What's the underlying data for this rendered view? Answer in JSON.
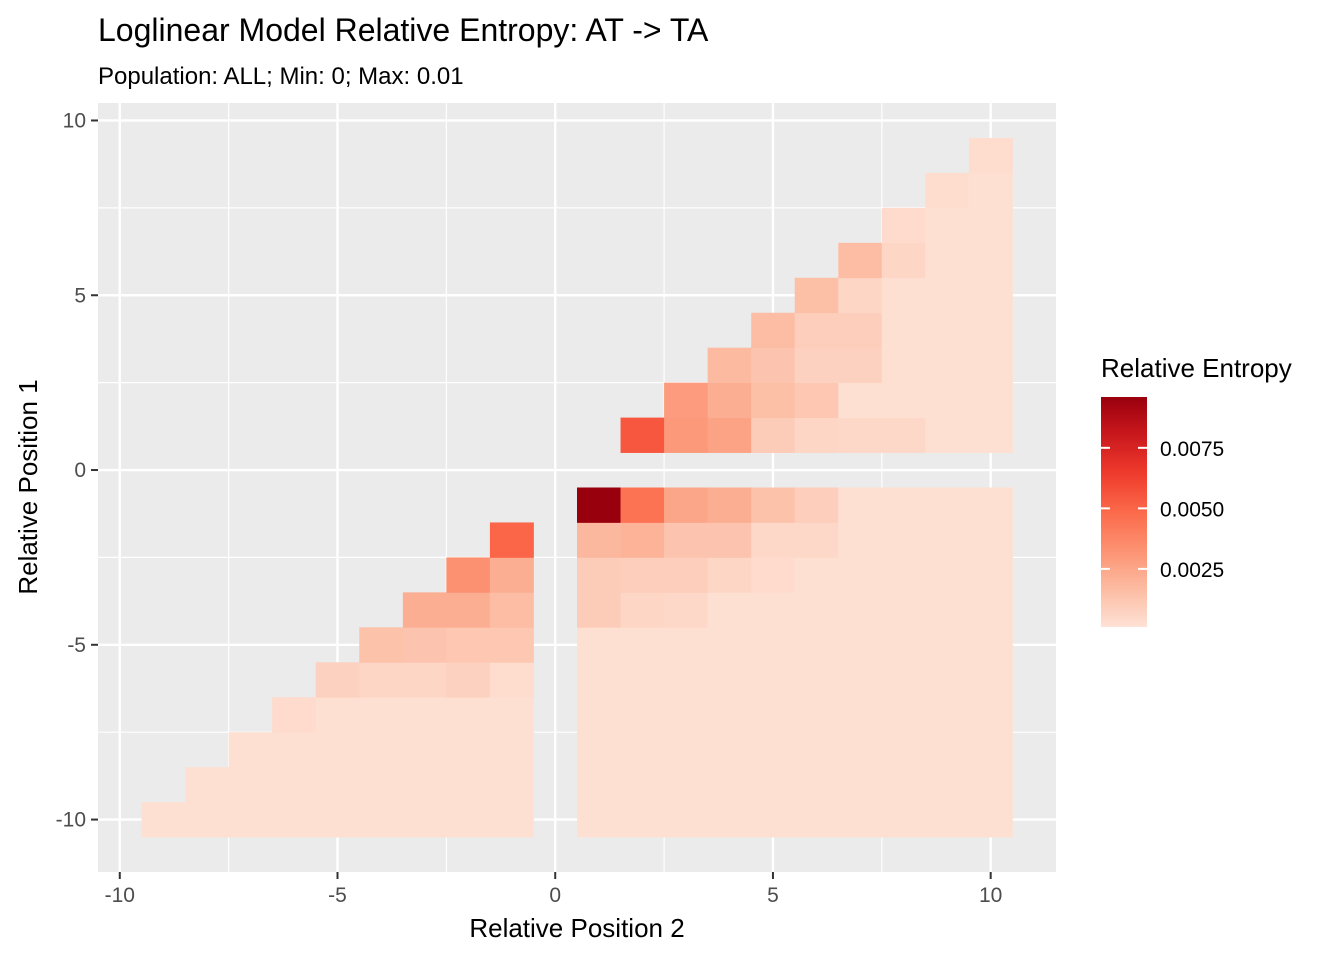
{
  "chart_data": {
    "type": "heatmap",
    "title": "Loglinear Model Relative Entropy: AT -> TA",
    "subtitle": "Population: ALL; Min: 0; Max: 0.01",
    "xlabel": "Relative Position 2",
    "ylabel": "Relative Position 1",
    "xlim": [
      -10.5,
      11.5
    ],
    "ylim": [
      -11.5,
      10.5
    ],
    "x_ticks": [
      -10,
      -5,
      0,
      5,
      10
    ],
    "y_ticks": [
      -10,
      -5,
      0,
      5,
      10
    ],
    "x_tick_labels": [
      "-10",
      "-5",
      "0",
      "5",
      "10"
    ],
    "y_tick_labels": [
      "-10",
      "-5",
      "0",
      "5",
      "10"
    ],
    "grid": true,
    "legend": {
      "title": "Relative Entropy",
      "placement": "right",
      "limits": [
        0.0001,
        0.0096
      ],
      "breaks": [
        0.0025,
        0.005,
        0.0075
      ],
      "labels": [
        "0.0025",
        "0.0050",
        "0.0075"
      ],
      "low_color": "#fee2d6",
      "high_color": "#99000d"
    },
    "value_default": 0.0002,
    "cells": [
      {
        "x": 2,
        "y": 1,
        "value": 0.0055
      },
      {
        "x": 3,
        "y": 1,
        "value": 0.003
      },
      {
        "x": 4,
        "y": 1,
        "value": 0.0026
      },
      {
        "x": 5,
        "y": 1,
        "value": 0.001
      },
      {
        "x": 6,
        "y": 1,
        "value": 0.0006
      },
      {
        "x": 7,
        "y": 1,
        "value": 0.0005
      },
      {
        "x": 8,
        "y": 1,
        "value": 0.0005
      },
      {
        "x": 3,
        "y": 2,
        "value": 0.0029
      },
      {
        "x": 4,
        "y": 2,
        "value": 0.0022
      },
      {
        "x": 5,
        "y": 2,
        "value": 0.0015
      },
      {
        "x": 6,
        "y": 2,
        "value": 0.0012
      },
      {
        "x": 4,
        "y": 3,
        "value": 0.0017
      },
      {
        "x": 5,
        "y": 3,
        "value": 0.0013
      },
      {
        "x": 6,
        "y": 3,
        "value": 0.0008
      },
      {
        "x": 7,
        "y": 3,
        "value": 0.0008
      },
      {
        "x": 5,
        "y": 4,
        "value": 0.0016
      },
      {
        "x": 6,
        "y": 4,
        "value": 0.0009
      },
      {
        "x": 7,
        "y": 4,
        "value": 0.0009
      },
      {
        "x": 6,
        "y": 5,
        "value": 0.0015
      },
      {
        "x": 7,
        "y": 5,
        "value": 0.0006
      },
      {
        "x": 7,
        "y": 6,
        "value": 0.0016
      },
      {
        "x": 8,
        "y": 6,
        "value": 0.0006
      },
      {
        "x": 8,
        "y": 7,
        "value": 0.0004
      },
      {
        "x": 9,
        "y": 8,
        "value": 0.0003
      },
      {
        "x": 10,
        "y": 9,
        "value": 0.0003
      },
      {
        "x": 1,
        "y": -1,
        "value": 0.0096
      },
      {
        "x": 2,
        "y": -1,
        "value": 0.0045
      },
      {
        "x": 3,
        "y": -1,
        "value": 0.0025
      },
      {
        "x": 4,
        "y": -1,
        "value": 0.0022
      },
      {
        "x": 5,
        "y": -1,
        "value": 0.0014
      },
      {
        "x": 6,
        "y": -1,
        "value": 0.0009
      },
      {
        "x": 1,
        "y": -2,
        "value": 0.0018
      },
      {
        "x": 2,
        "y": -2,
        "value": 0.002
      },
      {
        "x": 3,
        "y": -2,
        "value": 0.0013
      },
      {
        "x": 4,
        "y": -2,
        "value": 0.0013
      },
      {
        "x": 5,
        "y": -2,
        "value": 0.0005
      },
      {
        "x": 6,
        "y": -2,
        "value": 0.0005
      },
      {
        "x": 1,
        "y": -3,
        "value": 0.001
      },
      {
        "x": 2,
        "y": -3,
        "value": 0.0009
      },
      {
        "x": 3,
        "y": -3,
        "value": 0.0009
      },
      {
        "x": 4,
        "y": -3,
        "value": 0.0006
      },
      {
        "x": 5,
        "y": -3,
        "value": 0.0004
      },
      {
        "x": 1,
        "y": -4,
        "value": 0.001
      },
      {
        "x": 2,
        "y": -4,
        "value": 0.0006
      },
      {
        "x": 3,
        "y": -4,
        "value": 0.0005
      },
      {
        "x": -1,
        "y": -2,
        "value": 0.005
      },
      {
        "x": -2,
        "y": -3,
        "value": 0.0033
      },
      {
        "x": -1,
        "y": -3,
        "value": 0.0022
      },
      {
        "x": -3,
        "y": -4,
        "value": 0.0022
      },
      {
        "x": -2,
        "y": -4,
        "value": 0.0022
      },
      {
        "x": -1,
        "y": -4,
        "value": 0.0016
      },
      {
        "x": -4,
        "y": -5,
        "value": 0.0014
      },
      {
        "x": -3,
        "y": -5,
        "value": 0.0013
      },
      {
        "x": -2,
        "y": -5,
        "value": 0.0012
      },
      {
        "x": -1,
        "y": -5,
        "value": 0.0012
      },
      {
        "x": -5,
        "y": -6,
        "value": 0.0008
      },
      {
        "x": -4,
        "y": -6,
        "value": 0.0006
      },
      {
        "x": -3,
        "y": -6,
        "value": 0.0006
      },
      {
        "x": -2,
        "y": -6,
        "value": 0.0008
      },
      {
        "x": -1,
        "y": -6,
        "value": 0.0003
      },
      {
        "x": -6,
        "y": -7,
        "value": 0.0004
      }
    ]
  }
}
